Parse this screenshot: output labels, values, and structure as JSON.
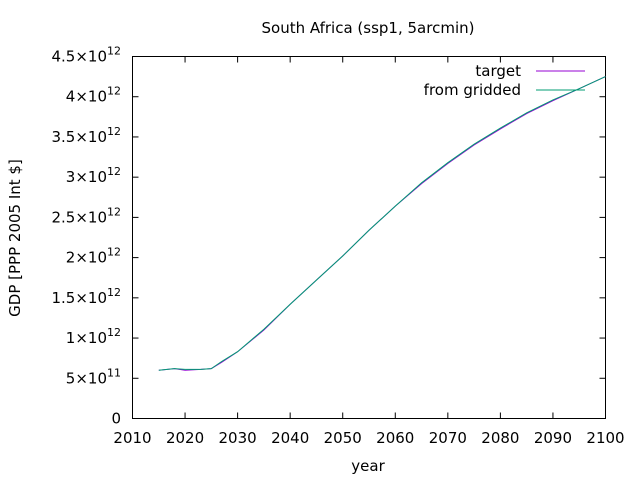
{
  "chart_data": {
    "type": "line",
    "title": "South Africa (ssp1, 5arcmin)",
    "xlabel": "year",
    "ylabel": "GDP [PPP 2005 Int $]",
    "xlim": [
      2010,
      2100
    ],
    "ylim": [
      0,
      4500000000000.0
    ],
    "grid": false,
    "legend_position": "top-right",
    "x_ticks": [
      "2010",
      "2020",
      "2030",
      "2040",
      "2050",
      "2060",
      "2070",
      "2080",
      "2090",
      "2100"
    ],
    "y_ticks": [
      {
        "value": 0,
        "mantissa": "0",
        "exponent": ""
      },
      {
        "value": 500000000000.0,
        "mantissa": "5×10",
        "exponent": "11"
      },
      {
        "value": 1000000000000.0,
        "mantissa": "1×10",
        "exponent": "12"
      },
      {
        "value": 1500000000000.0,
        "mantissa": "1.5×10",
        "exponent": "12"
      },
      {
        "value": 2000000000000.0,
        "mantissa": "2×10",
        "exponent": "12"
      },
      {
        "value": 2500000000000.0,
        "mantissa": "2.5×10",
        "exponent": "12"
      },
      {
        "value": 3000000000000.0,
        "mantissa": "3×10",
        "exponent": "12"
      },
      {
        "value": 3500000000000.0,
        "mantissa": "3.5×10",
        "exponent": "12"
      },
      {
        "value": 4000000000000.0,
        "mantissa": "4×10",
        "exponent": "12"
      },
      {
        "value": 4500000000000.0,
        "mantissa": "4.5×10",
        "exponent": "12"
      }
    ],
    "series": [
      {
        "name": "target",
        "color": "#9400d3",
        "x": [
          2015,
          2018,
          2020,
          2023,
          2025,
          2027,
          2030,
          2035,
          2040,
          2045,
          2050,
          2055,
          2060,
          2065,
          2070,
          2075,
          2080,
          2085,
          2090,
          2095,
          2100
        ],
        "y": [
          600000000000.0,
          620000000000.0,
          600000000000.0,
          610000000000.0,
          620000000000.0,
          700000000000.0,
          830000000000.0,
          1100000000000.0,
          1420000000000.0,
          1720000000000.0,
          2020000000000.0,
          2340000000000.0,
          2640000000000.0,
          2920000000000.0,
          3170000000000.0,
          3400000000000.0,
          3600000000000.0,
          3790000000000.0,
          3950000000000.0,
          4100000000000.0,
          4250000000000.0
        ]
      },
      {
        "name": "from gridded",
        "color": "#009e73",
        "x": [
          2015,
          2018,
          2020,
          2023,
          2025,
          2027,
          2030,
          2035,
          2040,
          2045,
          2050,
          2055,
          2060,
          2065,
          2070,
          2075,
          2080,
          2085,
          2090,
          2095,
          2100
        ],
        "y": [
          600000000000.0,
          620000000000.0,
          610000000000.0,
          610000000000.0,
          620000000000.0,
          710000000000.0,
          830000000000.0,
          1110000000000.0,
          1420000000000.0,
          1720000000000.0,
          2020000000000.0,
          2340000000000.0,
          2640000000000.0,
          2930000000000.0,
          3180000000000.0,
          3410000000000.0,
          3610000000000.0,
          3800000000000.0,
          3960000000000.0,
          4100000000000.0,
          4250000000000.0
        ]
      }
    ]
  }
}
